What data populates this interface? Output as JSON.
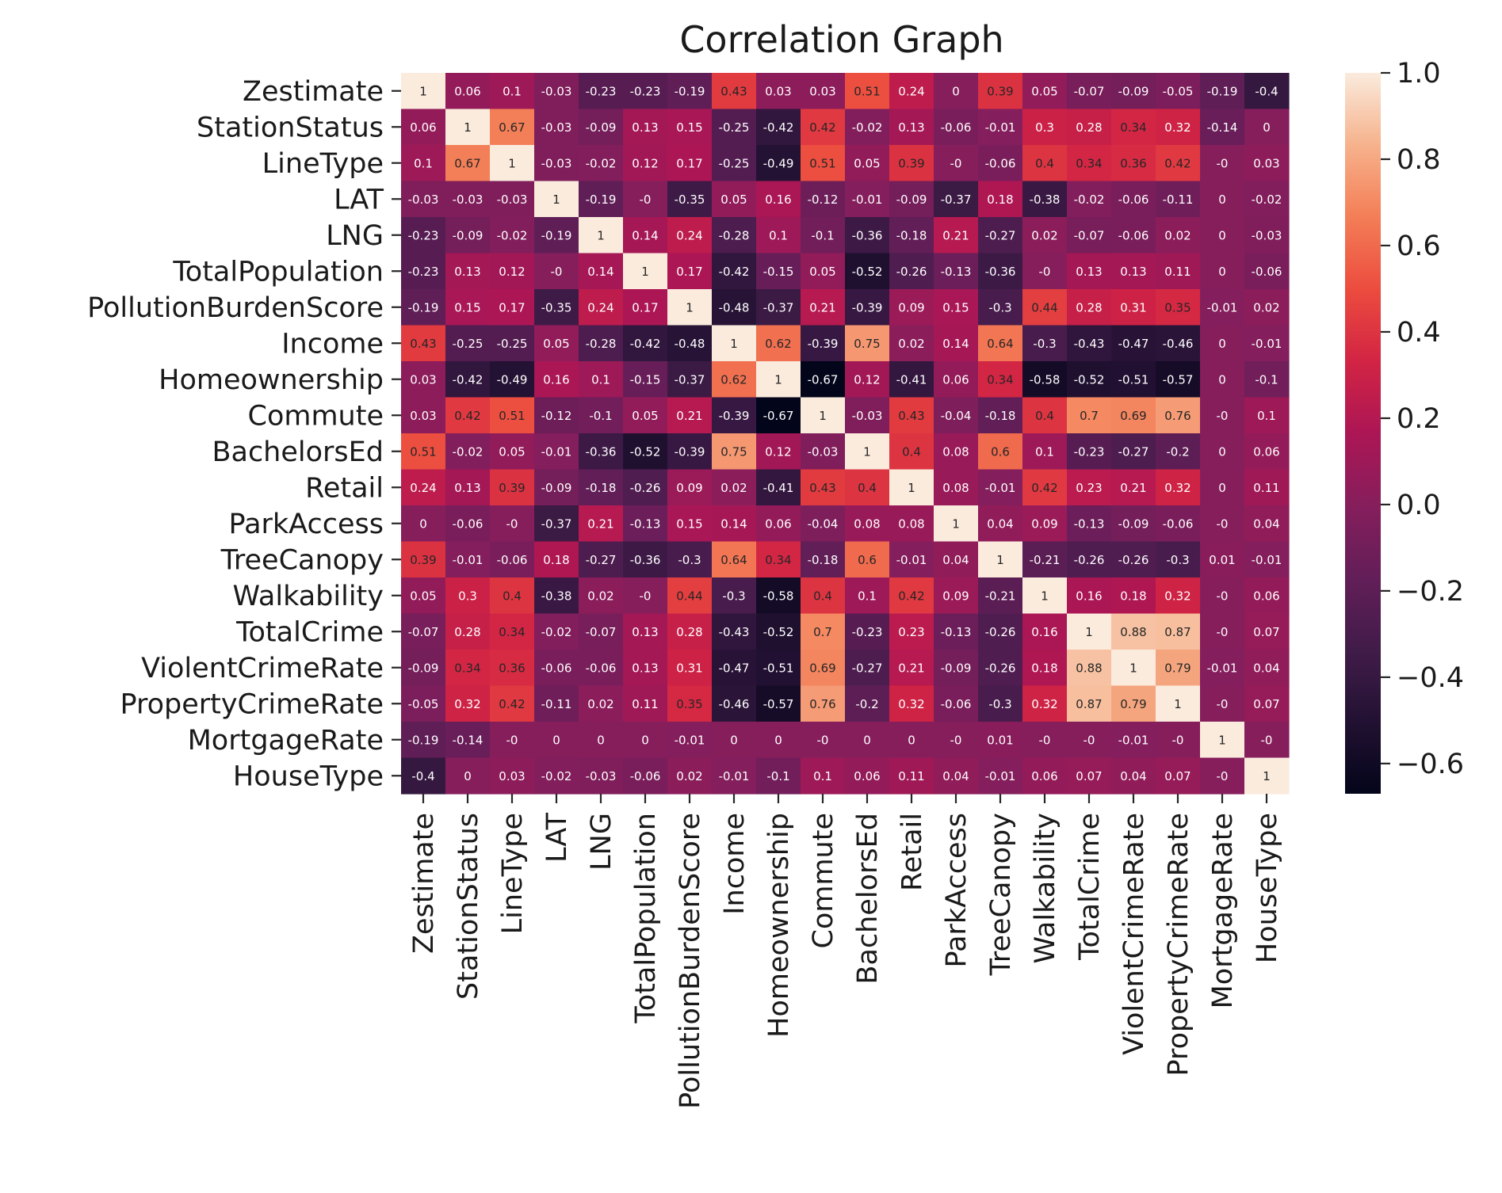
{
  "chart_data": {
    "type": "heatmap",
    "title": "Correlation Graph",
    "xlabel": "",
    "ylabel": "",
    "labels": [
      "Zestimate",
      "StationStatus",
      "LineType",
      "LAT",
      "LNG",
      "TotalPopulation",
      "PollutionBurdenScore",
      "Income",
      "Homeownership",
      "Commute",
      "BachelorsEd",
      "Retail",
      "ParkAccess",
      "TreeCanopy",
      "Walkability",
      "TotalCrime",
      "ViolentCrimeRate",
      "PropertyCrimeRate",
      "MortgageRate",
      "HouseType"
    ],
    "cell_text": [
      [
        "1",
        "0.06",
        "0.1",
        "-0.03",
        "-0.23",
        "-0.23",
        "-0.19",
        "0.43",
        "0.03",
        "0.03",
        "0.51",
        "0.24",
        "0",
        "0.39",
        "0.05",
        "-0.07",
        "-0.09",
        "-0.05",
        "-0.19",
        "-0.4"
      ],
      [
        "0.06",
        "1",
        "0.67",
        "-0.03",
        "-0.09",
        "0.13",
        "0.15",
        "-0.25",
        "-0.42",
        "0.42",
        "-0.02",
        "0.13",
        "-0.06",
        "-0.01",
        "0.3",
        "0.28",
        "0.34",
        "0.32",
        "-0.14",
        "0"
      ],
      [
        "0.1",
        "0.67",
        "1",
        "-0.03",
        "-0.02",
        "0.12",
        "0.17",
        "-0.25",
        "-0.49",
        "0.51",
        "0.05",
        "0.39",
        "-0",
        "-0.06",
        "0.4",
        "0.34",
        "0.36",
        "0.42",
        "-0",
        "0.03"
      ],
      [
        "-0.03",
        "-0.03",
        "-0.03",
        "1",
        "-0.19",
        "-0",
        "-0.35",
        "0.05",
        "0.16",
        "-0.12",
        "-0.01",
        "-0.09",
        "-0.37",
        "0.18",
        "-0.38",
        "-0.02",
        "-0.06",
        "-0.11",
        "0",
        "-0.02"
      ],
      [
        "-0.23",
        "-0.09",
        "-0.02",
        "-0.19",
        "1",
        "0.14",
        "0.24",
        "-0.28",
        "0.1",
        "-0.1",
        "-0.36",
        "-0.18",
        "0.21",
        "-0.27",
        "0.02",
        "-0.07",
        "-0.06",
        "0.02",
        "0",
        "-0.03"
      ],
      [
        "-0.23",
        "0.13",
        "0.12",
        "-0",
        "0.14",
        "1",
        "0.17",
        "-0.42",
        "-0.15",
        "0.05",
        "-0.52",
        "-0.26",
        "-0.13",
        "-0.36",
        "-0",
        "0.13",
        "0.13",
        "0.11",
        "0",
        "-0.06"
      ],
      [
        "-0.19",
        "0.15",
        "0.17",
        "-0.35",
        "0.24",
        "0.17",
        "1",
        "-0.48",
        "-0.37",
        "0.21",
        "-0.39",
        "0.09",
        "0.15",
        "-0.3",
        "0.44",
        "0.28",
        "0.31",
        "0.35",
        "-0.01",
        "0.02"
      ],
      [
        "0.43",
        "-0.25",
        "-0.25",
        "0.05",
        "-0.28",
        "-0.42",
        "-0.48",
        "1",
        "0.62",
        "-0.39",
        "0.75",
        "0.02",
        "0.14",
        "0.64",
        "-0.3",
        "-0.43",
        "-0.47",
        "-0.46",
        "0",
        "-0.01"
      ],
      [
        "0.03",
        "-0.42",
        "-0.49",
        "0.16",
        "0.1",
        "-0.15",
        "-0.37",
        "0.62",
        "1",
        "-0.67",
        "0.12",
        "-0.41",
        "0.06",
        "0.34",
        "-0.58",
        "-0.52",
        "-0.51",
        "-0.57",
        "0",
        "-0.1"
      ],
      [
        "0.03",
        "0.42",
        "0.51",
        "-0.12",
        "-0.1",
        "0.05",
        "0.21",
        "-0.39",
        "-0.67",
        "1",
        "-0.03",
        "0.43",
        "-0.04",
        "-0.18",
        "0.4",
        "0.7",
        "0.69",
        "0.76",
        "-0",
        "0.1"
      ],
      [
        "0.51",
        "-0.02",
        "0.05",
        "-0.01",
        "-0.36",
        "-0.52",
        "-0.39",
        "0.75",
        "0.12",
        "-0.03",
        "1",
        "0.4",
        "0.08",
        "0.6",
        "0.1",
        "-0.23",
        "-0.27",
        "-0.2",
        "0",
        "0.06"
      ],
      [
        "0.24",
        "0.13",
        "0.39",
        "-0.09",
        "-0.18",
        "-0.26",
        "0.09",
        "0.02",
        "-0.41",
        "0.43",
        "0.4",
        "1",
        "0.08",
        "-0.01",
        "0.42",
        "0.23",
        "0.21",
        "0.32",
        "0",
        "0.11"
      ],
      [
        "0",
        "-0.06",
        "-0",
        "-0.37",
        "0.21",
        "-0.13",
        "0.15",
        "0.14",
        "0.06",
        "-0.04",
        "0.08",
        "0.08",
        "1",
        "0.04",
        "0.09",
        "-0.13",
        "-0.09",
        "-0.06",
        "-0",
        "0.04"
      ],
      [
        "0.39",
        "-0.01",
        "-0.06",
        "0.18",
        "-0.27",
        "-0.36",
        "-0.3",
        "0.64",
        "0.34",
        "-0.18",
        "0.6",
        "-0.01",
        "0.04",
        "1",
        "-0.21",
        "-0.26",
        "-0.26",
        "-0.3",
        "0.01",
        "-0.01"
      ],
      [
        "0.05",
        "0.3",
        "0.4",
        "-0.38",
        "0.02",
        "-0",
        "0.44",
        "-0.3",
        "-0.58",
        "0.4",
        "0.1",
        "0.42",
        "0.09",
        "-0.21",
        "1",
        "0.16",
        "0.18",
        "0.32",
        "-0",
        "0.06"
      ],
      [
        "-0.07",
        "0.28",
        "0.34",
        "-0.02",
        "-0.07",
        "0.13",
        "0.28",
        "-0.43",
        "-0.52",
        "0.7",
        "-0.23",
        "0.23",
        "-0.13",
        "-0.26",
        "0.16",
        "1",
        "0.88",
        "0.87",
        "-0",
        "0.07"
      ],
      [
        "-0.09",
        "0.34",
        "0.36",
        "-0.06",
        "-0.06",
        "0.13",
        "0.31",
        "-0.47",
        "-0.51",
        "0.69",
        "-0.27",
        "0.21",
        "-0.09",
        "-0.26",
        "0.18",
        "0.88",
        "1",
        "0.79",
        "-0.01",
        "0.04"
      ],
      [
        "-0.05",
        "0.32",
        "0.42",
        "-0.11",
        "0.02",
        "0.11",
        "0.35",
        "-0.46",
        "-0.57",
        "0.76",
        "-0.2",
        "0.32",
        "-0.06",
        "-0.3",
        "0.32",
        "0.87",
        "0.79",
        "1",
        "-0",
        "0.07"
      ],
      [
        "-0.19",
        "-0.14",
        "-0",
        "0",
        "0",
        "0",
        "-0.01",
        "0",
        "0",
        "-0",
        "0",
        "0",
        "-0",
        "0.01",
        "-0",
        "-0",
        "-0.01",
        "-0",
        "1",
        "-0"
      ],
      [
        "-0.4",
        "0",
        "0.03",
        "-0.02",
        "-0.03",
        "-0.06",
        "0.02",
        "-0.01",
        "-0.1",
        "0.1",
        "0.06",
        "0.11",
        "0.04",
        "-0.01",
        "0.06",
        "0.07",
        "0.04",
        "0.07",
        "-0",
        "1"
      ]
    ],
    "vmin": -0.67,
    "vmax": 1.0,
    "colormap": "rocket",
    "colorbar": {
      "ticks": [
        1.0,
        0.8,
        0.6,
        0.4,
        0.2,
        0.0,
        -0.2,
        -0.4,
        -0.6
      ],
      "tick_labels": [
        "1.0",
        "0.8",
        "0.6",
        "0.4",
        "0.2",
        "0.0",
        "−0.2",
        "−0.4",
        "−0.6"
      ]
    },
    "grid": false,
    "legend": "colorbar-right"
  }
}
